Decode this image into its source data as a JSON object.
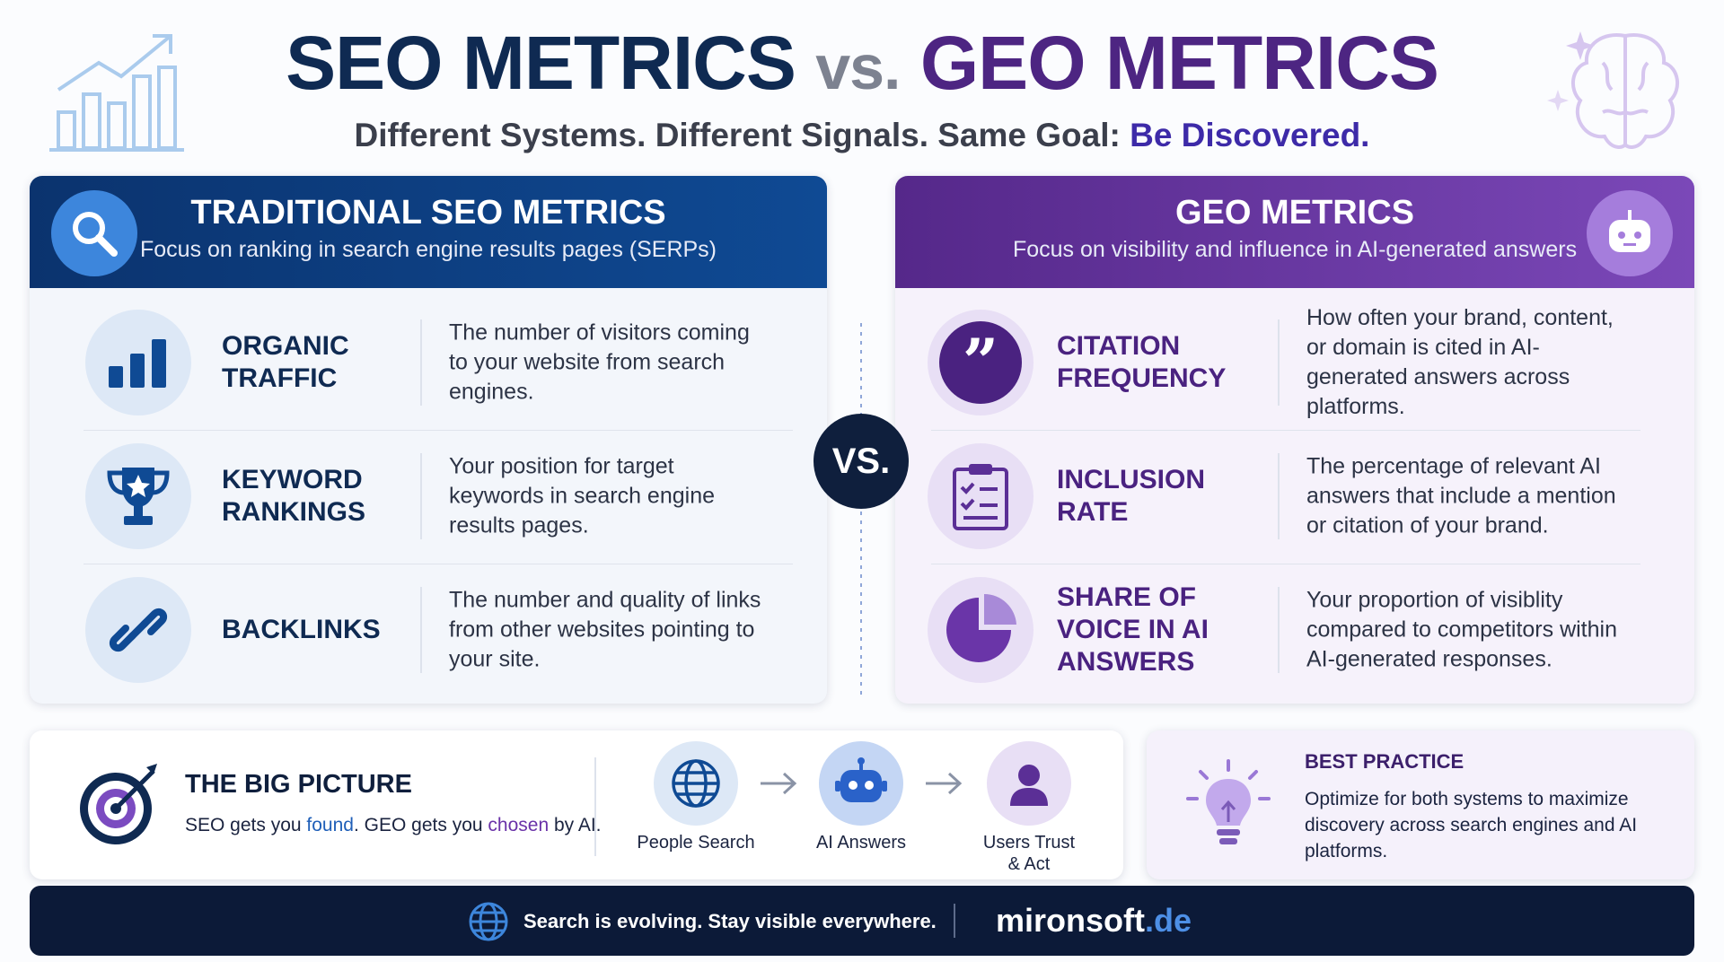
{
  "header": {
    "title_seo": "SEO METRICS",
    "title_vs": "vs.",
    "title_geo": "GEO METRICS",
    "subtitle": "Different Systems. Different Signals. Same Goal:",
    "subtitle_highlight": "Be Discovered."
  },
  "seo_panel": {
    "title": "TRADITIONAL SEO METRICS",
    "subtitle": "Focus on ranking in search engine results pages (SERPs)",
    "metrics": [
      {
        "name": "ORGANIC TRAFFIC",
        "description": "The number of visitors coming to your website from search engines."
      },
      {
        "name": "KEYWORD RANKINGS",
        "description": "Your position for target keywords in search engine results pages."
      },
      {
        "name": "BACKLINKS",
        "description": "The number and quality of links from other websites pointing to your site."
      }
    ]
  },
  "vs": "VS.",
  "geo_panel": {
    "title": "GEO METRICS",
    "subtitle": "Focus on visibility and influence in AI-generated answers",
    "metrics": [
      {
        "name": "CITATION FREQUENCY",
        "description": "How often your brand, content, or domain is cited in AI-generated answers across platforms."
      },
      {
        "name": "INCLUSION RATE",
        "description": "The percentage of relevant AI answers that include a mention or citation of your brand."
      },
      {
        "name": "SHARE OF VOICE IN AI ANSWERS",
        "description": "Your proportion of visiblity compared to competitors within AI-generated responses."
      }
    ]
  },
  "big_picture": {
    "title": "THE BIG PICTURE",
    "text_1": "SEO gets you",
    "text_found": "found",
    "text_2": ". GEO gets you",
    "text_chosen": "chosen",
    "text_3": "by AI.",
    "steps": [
      "People Search",
      "AI Answers",
      "Users Trust & Act"
    ]
  },
  "best_practice": {
    "title": "BEST PRACTICE",
    "text": "Optimize for both systems to maximize discovery across search engines and AI platforms."
  },
  "footer": {
    "tagline": "Search is evolving. Stay visible everywhere.",
    "brand": "mironsoft",
    "brand_tld": ".de"
  }
}
